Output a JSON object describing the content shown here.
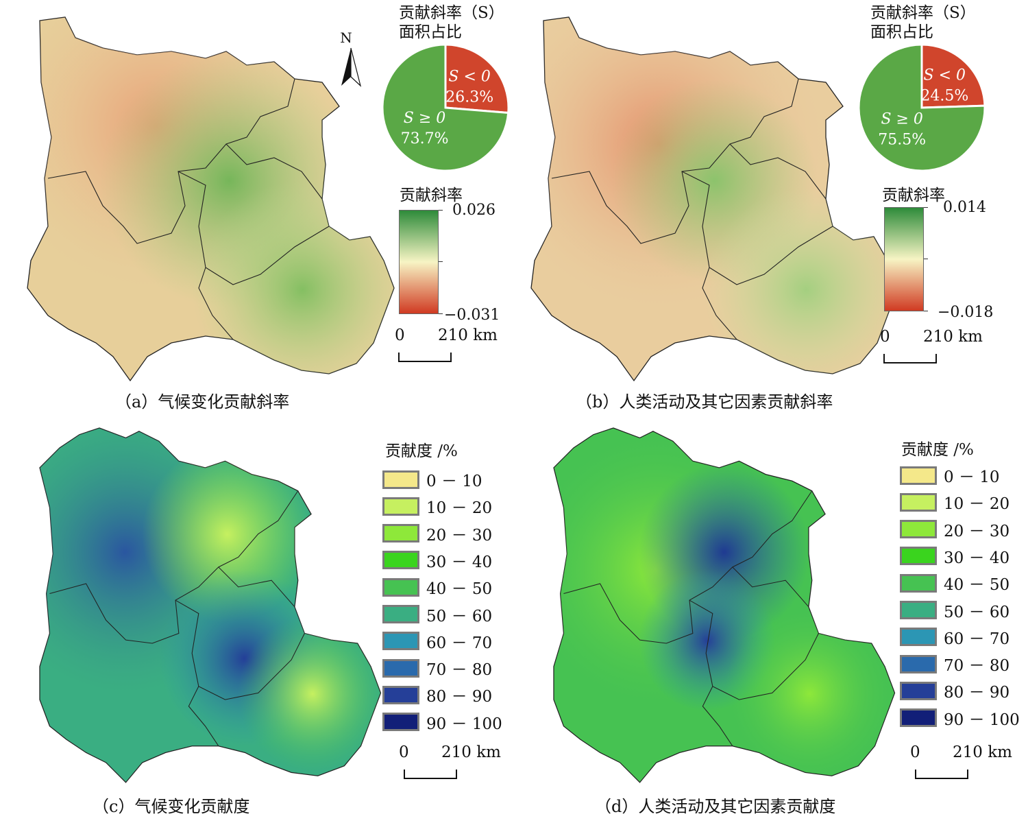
{
  "panel_a": {
    "caption": "（a）气候变化贡献斜率",
    "pie_title_line1": "贡献斜率（S）",
    "pie_title_line2": "面积占比",
    "pie": [
      {
        "label": "S < 0",
        "value": "26.3%",
        "fraction": 0.263,
        "color": "#d0452c"
      },
      {
        "label": "S ≥ 0",
        "value": "73.7%",
        "fraction": 0.737,
        "color": "#5aa846"
      }
    ],
    "legend_title": "贡献斜率",
    "legend_max": "0.026",
    "legend_min": "−0.031",
    "scale_zero": "0",
    "scale_far": "210 km",
    "north": "N"
  },
  "panel_b": {
    "caption": "（b）人类活动及其它因素贡献斜率",
    "pie_title_line1": "贡献斜率（S）",
    "pie_title_line2": "面积占比",
    "pie": [
      {
        "label": "S < 0",
        "value": "24.5%",
        "fraction": 0.245,
        "color": "#d0452c"
      },
      {
        "label": "S ≥ 0",
        "value": "75.5%",
        "fraction": 0.755,
        "color": "#5aa846"
      }
    ],
    "legend_title": "贡献斜率",
    "legend_max": "0.014",
    "legend_min": "−0.018",
    "scale_zero": "0",
    "scale_far": "210 km"
  },
  "panel_c": {
    "caption": "（c）气候变化贡献度",
    "legend_title": "贡献度 /%",
    "scale_zero": "0",
    "scale_far": "210 km"
  },
  "panel_d": {
    "caption": "（d）人类活动及其它因素贡献度",
    "legend_title": "贡献度 /%",
    "scale_zero": "0",
    "scale_far": "210 km"
  },
  "contribution_classes": [
    {
      "label": "0 － 10",
      "color": "#f4e88a"
    },
    {
      "label": "10 － 20",
      "color": "#c6f060"
    },
    {
      "label": "20 － 30",
      "color": "#8ee83a"
    },
    {
      "label": "30 － 40",
      "color": "#3ad41e"
    },
    {
      "label": "40 － 50",
      "color": "#46c252"
    },
    {
      "label": "50 － 60",
      "color": "#3aae82"
    },
    {
      "label": "60 － 70",
      "color": "#2c96b4"
    },
    {
      "label": "70 － 80",
      "color": "#2a6aac"
    },
    {
      "label": "80 － 90",
      "color": "#253f98"
    },
    {
      "label": "90 － 100",
      "color": "#121f78"
    }
  ],
  "slope_gradient": {
    "high": "#2e8b3a",
    "mid": "#f7f4c4",
    "low": "#d03a22"
  }
}
